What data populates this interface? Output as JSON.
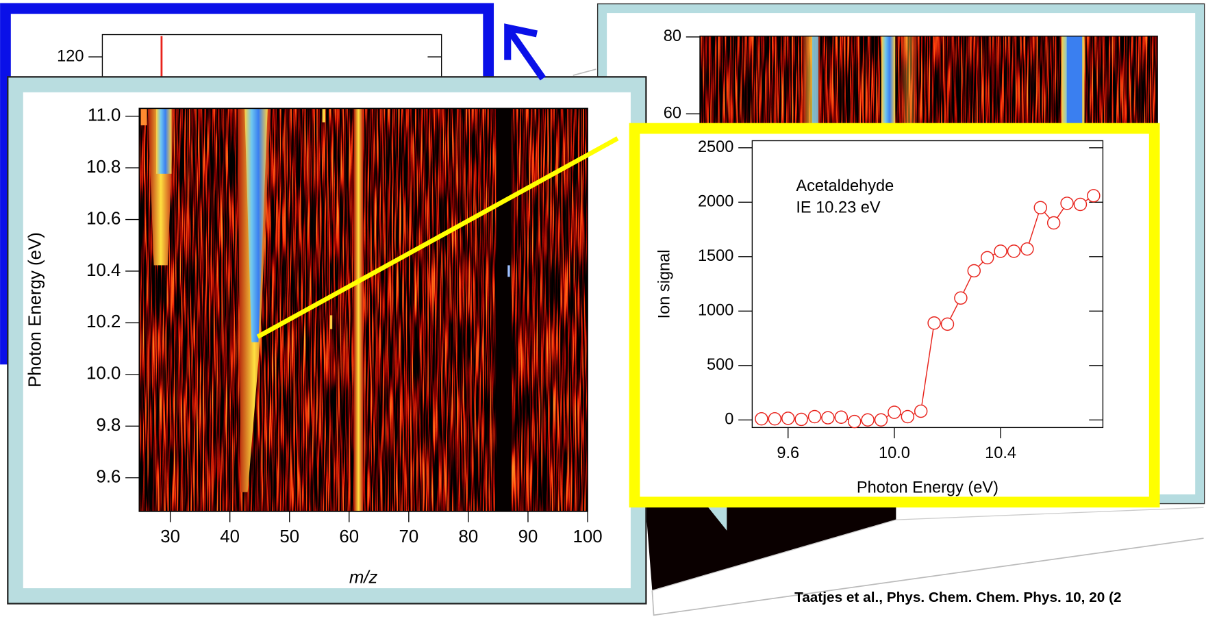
{
  "chart_data": [
    {
      "type": "spectrum",
      "ylim": [
        0,
        130
      ],
      "yticks": [
        120
      ]
    },
    {
      "type": "heatmap",
      "ylim": [
        0,
        80
      ],
      "yticks": [
        60,
        80
      ]
    },
    {
      "type": "heatmap",
      "x_label": "m/z",
      "y_label": "Photon Energy (eV)",
      "xlim": [
        24.8,
        100
      ],
      "ylim": [
        9.47,
        11.03
      ],
      "xticks": [
        30,
        40,
        50,
        60,
        70,
        80,
        90,
        100
      ],
      "yticks": [
        9.6,
        9.8,
        {
          "value": 10,
          "label": "10.0"
        },
        10.2,
        10.4,
        10.6,
        10.8,
        {
          "value": 11,
          "label": "11.0"
        }
      ]
    },
    {
      "type": "line",
      "annotations": [
        "Acetaldehyde",
        "IE 10.23 eV"
      ],
      "x_label": "Photon Energy (eV)",
      "y_label": "Ion signal",
      "xlim": [
        9.465,
        10.785
      ],
      "ylim": [
        -70,
        2565
      ],
      "xticks": [
        9.6,
        {
          "value": 10,
          "label": "10.0"
        },
        10.4
      ],
      "yticks": [
        0,
        500,
        1000,
        1500,
        2000,
        2500
      ],
      "x": [
        9.5,
        9.55,
        9.6,
        9.65,
        9.7,
        9.75,
        9.8,
        9.85,
        9.9,
        9.95,
        10.0,
        10.05,
        10.1,
        10.15,
        10.2,
        10.25,
        10.3,
        10.35,
        10.4,
        10.45,
        10.5,
        10.55,
        10.6,
        10.65,
        10.7,
        10.75
      ],
      "series": [
        {
          "color": "#e8231c",
          "values": [
            10,
            10,
            15,
            5,
            30,
            20,
            25,
            -15,
            0,
            0,
            70,
            30,
            80,
            890,
            880,
            1120,
            1370,
            1490,
            1550,
            1550,
            1570,
            1950,
            1810,
            1990,
            1980,
            2060
          ]
        }
      ]
    }
  ],
  "citation": "Taatjes et al., Phys. Chem. Chem. Phys. 10, 20 (2"
}
